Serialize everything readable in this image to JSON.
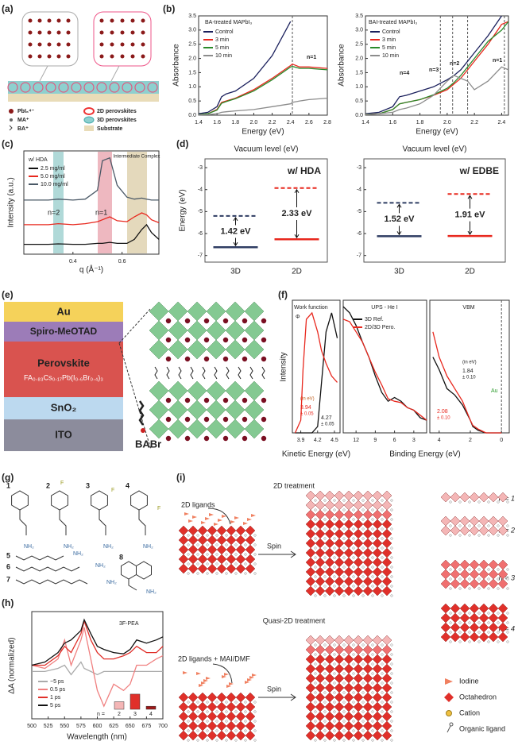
{
  "panel_labels": [
    "(a)",
    "(b)",
    "(c)",
    "(d)",
    "(e)",
    "(f)",
    "(g)",
    "(h)",
    "(i)"
  ],
  "schematic_a": {
    "legend": [
      "PbI₆⁴⁻",
      "MA⁺",
      "BA⁺",
      "2D perovskites",
      "3D perovskites",
      "Substrate"
    ]
  },
  "device_e": {
    "layers": [
      "Au",
      "Spiro-MeOTAD",
      "Perovskite",
      "SnO₂",
      "ITO"
    ],
    "formula": "FA₀.₈₃Cs₀.₁₇Pb(I₀.₆Br₀.₄)₃",
    "molecule": "BABr"
  },
  "molecules_g": {
    "numbers": [
      "1",
      "2",
      "3",
      "4",
      "5",
      "6",
      "7",
      "8"
    ],
    "amine": "NH₂",
    "fluorine": "F"
  },
  "schematic_i": {
    "titles": [
      "2D treatment",
      "Quasi-2D treatment"
    ],
    "inputs": [
      "2D ligands",
      "2D ligands + MAI/DMF"
    ],
    "action": "Spin",
    "phases": [
      "n = 1",
      "n = 2",
      "n = 3",
      "n = 4"
    ],
    "legend": [
      "Iodine",
      "Octahedron",
      "Cation",
      "Organic ligand"
    ]
  },
  "chart_data": [
    {
      "type": "line",
      "title": "BA-treated MAPbI₃",
      "xlabel": "Energy (eV)",
      "ylabel": "Absorbance",
      "annotations": [
        "n=1"
      ],
      "x": [
        1.4,
        1.5,
        1.6,
        1.65,
        1.7,
        1.8,
        2.0,
        2.2,
        2.4,
        2.42,
        2.5,
        2.6,
        2.8
      ],
      "xlim": [
        1.4,
        2.8
      ],
      "xticks": [
        1.4,
        1.6,
        1.8,
        {
          "value": 2,
          "label": "2.0"
        },
        2.2,
        2.4,
        2.6,
        2.8
      ],
      "ylim": [
        0,
        3.5
      ],
      "yticks": [
        {
          "value": 0,
          "label": "0.0"
        },
        0.5,
        {
          "value": 1,
          "label": "1.0"
        },
        1.5,
        {
          "value": 2,
          "label": "2.0"
        },
        2.5,
        {
          "value": 3,
          "label": "3.0"
        },
        3.5
      ],
      "vlines": [
        2.42
      ],
      "series": [
        {
          "name": "Control",
          "color": "#1a1f5c",
          "values": [
            0.05,
            0.1,
            0.3,
            0.65,
            0.75,
            0.85,
            1.3,
            2.1,
            3.3,
            null,
            null,
            null,
            null
          ]
        },
        {
          "name": "3 min",
          "color": "#e8281e",
          "values": [
            0.02,
            0.05,
            0.2,
            0.45,
            0.5,
            0.6,
            0.9,
            1.3,
            1.75,
            1.8,
            1.7,
            1.7,
            1.65
          ]
        },
        {
          "name": "5 min",
          "color": "#2a8a2a",
          "values": [
            0.02,
            0.05,
            0.18,
            0.42,
            0.48,
            0.58,
            0.85,
            1.25,
            1.7,
            1.72,
            1.65,
            1.65,
            1.6
          ]
        },
        {
          "name": "10 min",
          "color": "#8c8c8c",
          "values": [
            0.01,
            0.02,
            0.05,
            0.1,
            0.12,
            0.15,
            0.2,
            0.3,
            0.4,
            0.45,
            0.5,
            0.55,
            0.6
          ]
        }
      ]
    },
    {
      "type": "line",
      "title": "BAI-treated MAPbI₃",
      "xlabel": "Energy (eV)",
      "ylabel": "Absorbance",
      "annotations": [
        "n=4",
        "n=3",
        "n=2",
        "n=1"
      ],
      "x": [
        1.4,
        1.5,
        1.6,
        1.65,
        1.7,
        1.8,
        1.9,
        2.0,
        2.05,
        2.1,
        2.15,
        2.2,
        2.3,
        2.4,
        2.45
      ],
      "xlim": [
        1.4,
        2.45
      ],
      "xticks": [
        1.4,
        1.6,
        1.8,
        {
          "value": 2,
          "label": "2.0"
        },
        2.2,
        2.4
      ],
      "ylim": [
        0,
        3.5
      ],
      "yticks": [
        {
          "value": 0,
          "label": "0.0"
        },
        0.5,
        {
          "value": 1,
          "label": "1.0"
        },
        1.5,
        {
          "value": 2,
          "label": "2.0"
        },
        2.5,
        {
          "value": 3,
          "label": "3.0"
        },
        3.5
      ],
      "vlines": [
        1.95,
        2.04,
        2.15,
        2.42
      ],
      "series": [
        {
          "name": "Control",
          "color": "#1a1f5c",
          "values": [
            0.05,
            0.1,
            0.3,
            0.65,
            0.7,
            0.85,
            1.0,
            1.25,
            1.4,
            1.6,
            1.9,
            2.2,
            2.8,
            3.5,
            null
          ]
        },
        {
          "name": "3 min",
          "color": "#e8281e",
          "values": [
            0.03,
            0.05,
            0.2,
            0.4,
            0.45,
            0.55,
            0.7,
            0.9,
            1.1,
            1.3,
            1.6,
            1.9,
            2.5,
            3.2,
            3.3
          ]
        },
        {
          "name": "5 min",
          "color": "#2a8a2a",
          "values": [
            0.03,
            0.05,
            0.2,
            0.4,
            0.45,
            0.55,
            0.72,
            0.95,
            1.15,
            1.4,
            1.7,
            2.0,
            2.6,
            3.0,
            3.3
          ]
        },
        {
          "name": "10 min",
          "color": "#8c8c8c",
          "values": [
            0.02,
            0.05,
            0.1,
            0.2,
            0.25,
            0.4,
            0.7,
            1.2,
            1.4,
            1.3,
            1.2,
            0.9,
            1.2,
            1.7,
            1.6
          ]
        }
      ]
    },
    {
      "type": "line",
      "xlabel": "q (Å⁻¹)",
      "ylabel": "Intensity (a.u.)",
      "legend_title": "w/ HDA",
      "annotations": [
        "n=2",
        "n=1",
        "Intermediate Complex"
      ],
      "x": [
        0.2,
        0.3,
        0.34,
        0.4,
        0.45,
        0.5,
        0.52,
        0.55,
        0.58,
        0.62,
        0.65,
        0.68,
        0.7,
        0.72,
        0.75
      ],
      "xlim": [
        0.2,
        0.75
      ],
      "xticks": [
        0.4,
        0.6
      ],
      "ylim": [
        0,
        10.5
      ],
      "series": [
        {
          "name": "2.5 mg/ml",
          "color": "#111111",
          "values": [
            1,
            1,
            1.05,
            1,
            1,
            1.1,
            1.1,
            1.2,
            1.1,
            1.1,
            1.5,
            2.5,
            3,
            2.2,
            1.5
          ]
        },
        {
          "name": "5.0 mg/ml",
          "color": "#e8281e",
          "values": [
            3,
            3,
            3.1,
            3,
            3.1,
            3.3,
            3.5,
            3.8,
            3.4,
            3.3,
            3.8,
            4.2,
            4,
            3.5,
            3.2
          ]
        },
        {
          "name": "10.0 mg/ml",
          "color": "#4a5866",
          "values": [
            5.5,
            5.5,
            5.6,
            5.5,
            5.6,
            6.5,
            9.5,
            9.8,
            7,
            5.8,
            5.6,
            5.7,
            5.6,
            5.5,
            5.5
          ]
        }
      ]
    },
    {
      "type": "levels",
      "header": "Vacuum level (eV)",
      "title": "w/ HDA",
      "ylabel": "Energy (eV)",
      "categories": [
        "3D",
        "2D"
      ],
      "cbm": [
        -5.2,
        -3.93
      ],
      "vbm": [
        -6.62,
        -6.26
      ],
      "gaps": [
        "1.42 eV",
        "2.33 eV"
      ],
      "colors": [
        "#2f3d63",
        "#e8281e"
      ],
      "ylim": [
        -7.3,
        -2.6
      ],
      "yticks": [
        -3,
        -4,
        -5,
        -6,
        -7
      ]
    },
    {
      "type": "levels",
      "header": "Vacuum level (eV)",
      "title": "w/ EDBE",
      "categories": [
        "3D",
        "2D"
      ],
      "cbm": [
        -4.6,
        -4.2
      ],
      "vbm": [
        -6.12,
        -6.11
      ],
      "gaps": [
        "1.52 eV",
        "1.91 eV"
      ],
      "colors": [
        "#2f3d63",
        "#e8281e"
      ],
      "ylim": [
        -7.3,
        -2.6
      ],
      "yticks": [
        -3,
        -4,
        -5,
        -6,
        -7
      ]
    },
    {
      "type": "line",
      "title": "Work function",
      "ylabel": "Intensity",
      "xlabel": "Kinetic Energy (eV)",
      "annotations": [
        "Φ",
        "(in eV)",
        "3.94",
        "± 0.05",
        "4.27",
        "± 0.05"
      ],
      "x": [
        3.8,
        3.9,
        3.94,
        4.0,
        4.1,
        4.2,
        4.27,
        4.35,
        4.45,
        4.55
      ],
      "xlim": [
        3.75,
        4.6
      ],
      "xticks": [
        3.9,
        4.2,
        4.5
      ],
      "ylim": [
        0,
        1.05
      ],
      "series": [
        {
          "color": "#111111",
          "values": [
            0,
            0,
            0,
            0,
            0,
            0.05,
            0.4,
            0.8,
            0.95,
            0.75
          ]
        },
        {
          "color": "#e8281e",
          "values": [
            0,
            0.1,
            0.5,
            0.9,
            0.95,
            0.8,
            0.65,
            0.55,
            0.45,
            0.4
          ]
        }
      ]
    },
    {
      "type": "line",
      "title": "UPS - He I",
      "xlabel": "Binding Energy (eV)",
      "x": [
        14,
        13,
        12,
        11,
        10,
        9,
        8,
        7,
        6,
        5,
        4,
        3,
        2,
        1
      ],
      "xlim": [
        14,
        1
      ],
      "xticks": [
        12,
        9,
        6,
        3
      ],
      "ylim": [
        0,
        1.05
      ],
      "series": [
        {
          "name": "3D Ref.",
          "color": "#111111",
          "values": [
            1.0,
            0.95,
            0.85,
            0.72,
            0.6,
            0.45,
            0.32,
            0.25,
            0.28,
            0.25,
            0.2,
            0.18,
            0.12,
            0.1
          ]
        },
        {
          "name": "2D/3D Pero.",
          "color": "#e8281e",
          "values": [
            0.9,
            0.88,
            0.8,
            0.72,
            0.6,
            0.48,
            0.38,
            0.27,
            0.25,
            0.24,
            0.2,
            0.18,
            0.14,
            0.1
          ]
        }
      ]
    },
    {
      "type": "line",
      "title": "VBM",
      "annotations": [
        "(in eV)",
        "1.84",
        "± 0.10",
        "2.08",
        "± 0.10",
        "Au"
      ],
      "x": [
        4.4,
        4,
        3.5,
        3,
        2.5,
        2,
        1.84,
        1.5,
        1,
        0.5,
        0
      ],
      "xlim": [
        4.6,
        -0.5
      ],
      "xticks": [
        4,
        2,
        0
      ],
      "ylim": [
        0,
        1.05
      ],
      "vlines": [
        0
      ],
      "series": [
        {
          "color": "#111111",
          "values": [
            0.6,
            0.5,
            0.35,
            0.3,
            0.22,
            0.1,
            0.05,
            0.02,
            0,
            0,
            0
          ]
        },
        {
          "color": "#e8281e",
          "values": [
            0.8,
            0.6,
            0.45,
            0.35,
            0.25,
            0.1,
            0.06,
            0.03,
            0,
            0,
            0
          ]
        }
      ]
    },
    {
      "type": "line",
      "title": "3F-PEA",
      "xlabel": "Wavelength (nm)",
      "ylabel": "ΔA (normalized)",
      "x": [
        500,
        520,
        540,
        550,
        560,
        575,
        580,
        590,
        600,
        610,
        625,
        640,
        650,
        660,
        675,
        690,
        700
      ],
      "xlim": [
        500,
        700
      ],
      "xticks": [
        500,
        525,
        550,
        575,
        600,
        625,
        650,
        675,
        700
      ],
      "ylim": [
        -0.75,
        0.95
      ],
      "series": [
        {
          "name": "−5 ps",
          "color": "#aaaaaa",
          "values": [
            0,
            0,
            0.05,
            0.1,
            -0.05,
            0.15,
            0.05,
            0,
            -0.05,
            0,
            0,
            0,
            0,
            0,
            0,
            0,
            0
          ]
        },
        {
          "name": "0.5 ps",
          "color": "#f08080",
          "values": [
            0.1,
            0.05,
            0.2,
            0.5,
            0.1,
            0.5,
            0.7,
            0.2,
            -0.3,
            -0.55,
            -0.2,
            -0.3,
            -0.2,
            0.1,
            0.1,
            0.2,
            0.25
          ]
        },
        {
          "name": "1 ps",
          "color": "#e0302a",
          "values": [
            0.1,
            0.1,
            0.25,
            0.4,
            0.3,
            0.6,
            0.8,
            0.5,
            0.3,
            0.2,
            0.2,
            0.25,
            0.3,
            0.4,
            0.3,
            0.3,
            0.4
          ]
        },
        {
          "name": "5 ps",
          "color": "#111111",
          "values": [
            0.1,
            0.15,
            0.3,
            0.45,
            0.5,
            0.65,
            0.82,
            0.6,
            0.4,
            0.35,
            0.3,
            0.28,
            0.35,
            0.5,
            0.45,
            0.5,
            0.55
          ]
        }
      ]
    },
    {
      "type": "bar",
      "label": "n =",
      "categories": [
        "2",
        "3",
        "4"
      ],
      "values": [
        0.5,
        1,
        0.2
      ],
      "colors": [
        "#f4b6b6",
        "#e0302a",
        "#a01818"
      ],
      "ylim": [
        0,
        1.1
      ]
    }
  ]
}
